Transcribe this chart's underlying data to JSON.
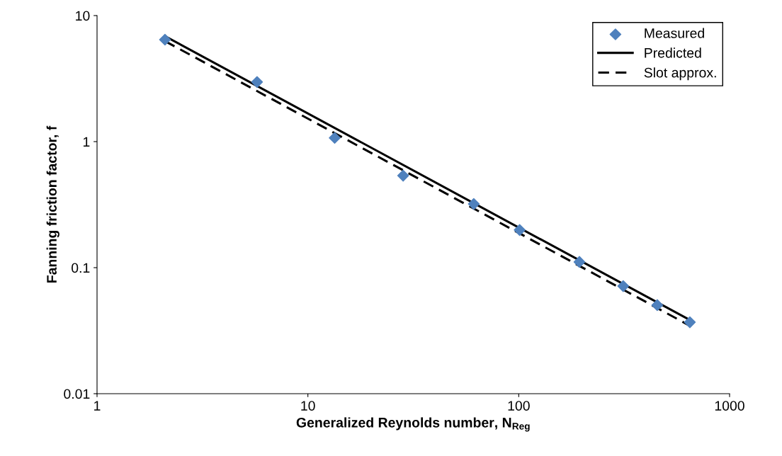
{
  "chart_data": {
    "type": "scatter",
    "xlabel": "Generalized Reynolds number, N$_{Reg}$",
    "ylabel": "Fanning friction factor, f",
    "log": "xy",
    "xlim": [
      1,
      1000
    ],
    "ylim": [
      0.01,
      10
    ],
    "xticks": [
      1,
      10,
      100,
      1000
    ],
    "yticks": [
      0.01,
      0.1,
      1,
      10
    ],
    "grid": false,
    "legend": "top right",
    "series": [
      {
        "name": "Measured",
        "marker": "diamond",
        "color": "#4f81bd",
        "x": [
          2.1,
          5.74,
          13.4,
          28.3,
          61.2,
          101,
          194,
          313,
          454,
          648
        ],
        "values": [
          6.44,
          2.97,
          1.07,
          0.537,
          0.32,
          0.199,
          0.111,
          0.0714,
          0.0504,
          0.0369
        ]
      },
      {
        "name": "Predicted",
        "type": "line",
        "line_style": "solid",
        "color": "#000000",
        "x": [
          2.1,
          648
        ],
        "values": [
          6.87,
          0.0384
        ]
      },
      {
        "name": "Slot approx.",
        "type": "line",
        "line_style": "dashed",
        "color": "#000000",
        "x": [
          2.1,
          648
        ],
        "values": [
          6.27,
          0.0346
        ]
      }
    ]
  }
}
